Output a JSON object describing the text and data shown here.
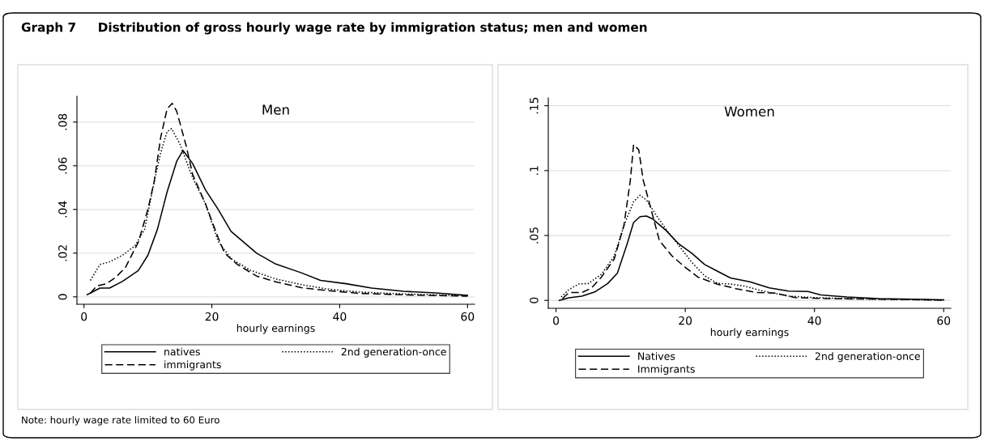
{
  "chart_data": [
    {
      "type": "line",
      "title": "Men",
      "xlabel": "hourly earnings",
      "annotations": [
        "Graph 7     Distribution of gross hourly wage rate by immigration status; men and women",
        "Note: hourly wage rate limited to 60 Euro"
      ],
      "xlim": [
        -1.1,
        61.1
      ],
      "ylim": [
        -0.0034,
        0.0918
      ],
      "xticks": [
        0,
        20,
        40,
        60
      ],
      "yticks": [
        0,
        {
          "value": 0.02,
          "label": ".02"
        },
        {
          "value": 0.04,
          "label": ".04"
        },
        {
          "value": 0.06,
          "label": ".06"
        },
        {
          "value": 0.08,
          "label": ".08"
        }
      ],
      "grid": "y",
      "legend": "bottom",
      "series": [
        {
          "name": "natives",
          "color": "#000000",
          "line_style": "solid",
          "x": [
            0.5,
            2.5,
            4,
            6,
            8.5,
            10,
            11.5,
            13,
            14.5,
            15.5,
            17,
            19,
            21,
            23,
            25,
            27,
            30,
            34,
            37,
            41,
            45,
            50,
            55,
            60
          ],
          "values": [
            0.001,
            0.004,
            0.004,
            0.007,
            0.012,
            0.019,
            0.031,
            0.048,
            0.062,
            0.067,
            0.061,
            0.049,
            0.04,
            0.03,
            0.025,
            0.02,
            0.015,
            0.011,
            0.0075,
            0.006,
            0.004,
            0.0025,
            0.0018,
            0.0007
          ]
        },
        {
          "name": "immigrants",
          "color": "#000000",
          "line_style": "dashed",
          "x": [
            1,
            2,
            3.5,
            5,
            6.5,
            8.5,
            10,
            11,
            12,
            13,
            13.8,
            14.5,
            16,
            17,
            19,
            21,
            22,
            24,
            27,
            30,
            34,
            38,
            43,
            50,
            60
          ],
          "values": [
            0.0016,
            0.005,
            0.006,
            0.009,
            0.0135,
            0.025,
            0.04,
            0.053,
            0.073,
            0.086,
            0.0886,
            0.085,
            0.069,
            0.056,
            0.0426,
            0.027,
            0.02,
            0.0148,
            0.0095,
            0.0069,
            0.0042,
            0.0029,
            0.0016,
            0.0009,
            0.0003
          ]
        },
        {
          "name": "2nd generation-once",
          "color": "#000000",
          "line_style": "dotted",
          "x": [
            1,
            2.5,
            4,
            6,
            8,
            9.5,
            11,
            12,
            13,
            13.7,
            15,
            17,
            19,
            21,
            23,
            26,
            30,
            34,
            38,
            43,
            50,
            60
          ],
          "values": [
            0.0075,
            0.0148,
            0.016,
            0.019,
            0.0234,
            0.031,
            0.053,
            0.066,
            0.0756,
            0.077,
            0.07,
            0.0545,
            0.0426,
            0.0254,
            0.0175,
            0.0122,
            0.0082,
            0.0056,
            0.0036,
            0.0022,
            0.0013,
            0.0005
          ]
        }
      ]
    },
    {
      "type": "line",
      "title": "Women",
      "xlabel": "hourly earnings",
      "xlim": [
        -1.2,
        61.1
      ],
      "ylim": [
        -0.0061,
        0.156
      ],
      "xticks": [
        0,
        20,
        40,
        60
      ],
      "yticks": [
        0,
        {
          "value": 0.05,
          "label": ".05"
        },
        {
          "value": 0.1,
          "label": ".1"
        },
        {
          "value": 0.15,
          "label": ".15"
        }
      ],
      "grid": "y",
      "legend": "bottom",
      "series": [
        {
          "name": "Natives",
          "color": "#000000",
          "line_style": "solid",
          "x": [
            0.5,
            2,
            4,
            6,
            8,
            9.5,
            11,
            12,
            13,
            14,
            15,
            17,
            19,
            21,
            23,
            25,
            27,
            30,
            33,
            36,
            39,
            41,
            45,
            50,
            60
          ],
          "values": [
            0,
            0.002,
            0.0033,
            0.0065,
            0.013,
            0.021,
            0.0435,
            0.06,
            0.0645,
            0.065,
            0.0626,
            0.054,
            0.0435,
            0.0364,
            0.0276,
            0.0224,
            0.0173,
            0.0143,
            0.0096,
            0.0072,
            0.0068,
            0.0042,
            0.0026,
            0.0014,
            0.0005
          ]
        },
        {
          "name": "Immigrants",
          "color": "#000000",
          "line_style": "dashed",
          "x": [
            1,
            2,
            4,
            5.5,
            7,
            9,
            10.5,
            11.5,
            12,
            12.8,
            13.5,
            14.5,
            16,
            18,
            20,
            22,
            25,
            28,
            31,
            34,
            37,
            42,
            50,
            60
          ],
          "values": [
            0.0014,
            0.006,
            0.006,
            0.0096,
            0.0178,
            0.0318,
            0.0575,
            0.0925,
            0.12,
            0.116,
            0.0925,
            0.074,
            0.046,
            0.034,
            0.0255,
            0.0178,
            0.0124,
            0.0089,
            0.0061,
            0.0056,
            0.0021,
            0.0014,
            0.0009,
            0.0002
          ]
        },
        {
          "name": "2nd generation-once",
          "color": "#000000",
          "line_style": "dotted",
          "x": [
            0.8,
            2,
            3.5,
            5,
            7,
            9,
            10.5,
            12,
            13,
            14,
            15.5,
            17,
            19,
            21,
            23,
            25,
            27,
            29,
            32,
            36,
            40,
            45,
            50,
            60
          ],
          "values": [
            0.0026,
            0.0084,
            0.0126,
            0.013,
            0.02,
            0.034,
            0.0575,
            0.076,
            0.081,
            0.0773,
            0.0657,
            0.055,
            0.0423,
            0.0294,
            0.0189,
            0.0131,
            0.0126,
            0.0112,
            0.0072,
            0.0033,
            0.0021,
            0.0014,
            0.0009,
            0.0002
          ]
        }
      ]
    }
  ]
}
